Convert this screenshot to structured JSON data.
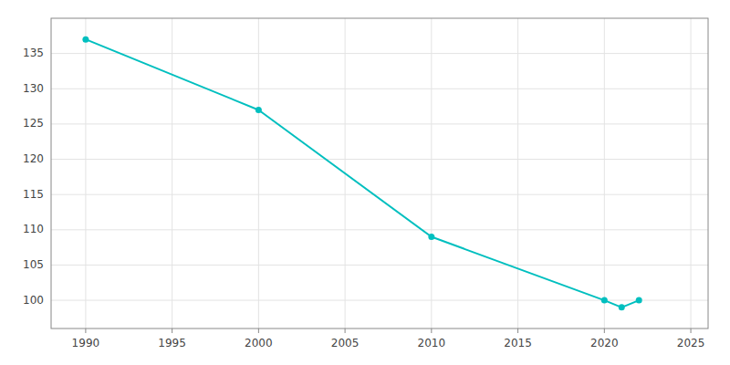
{
  "chart_data": {
    "type": "line",
    "x": [
      1990,
      2000,
      2010,
      2020,
      2021,
      2022
    ],
    "values": [
      137,
      127,
      109,
      100,
      99,
      100
    ],
    "color": "#00BFBF",
    "marker": "circle",
    "line_style": "solid",
    "xlim": [
      1988,
      2026
    ],
    "ylim": [
      96,
      140
    ],
    "xticks": [
      1990,
      1995,
      2000,
      2005,
      2010,
      2015,
      2020,
      2025
    ],
    "yticks": [
      100,
      105,
      110,
      115,
      120,
      125,
      130,
      135
    ],
    "grid": true
  }
}
